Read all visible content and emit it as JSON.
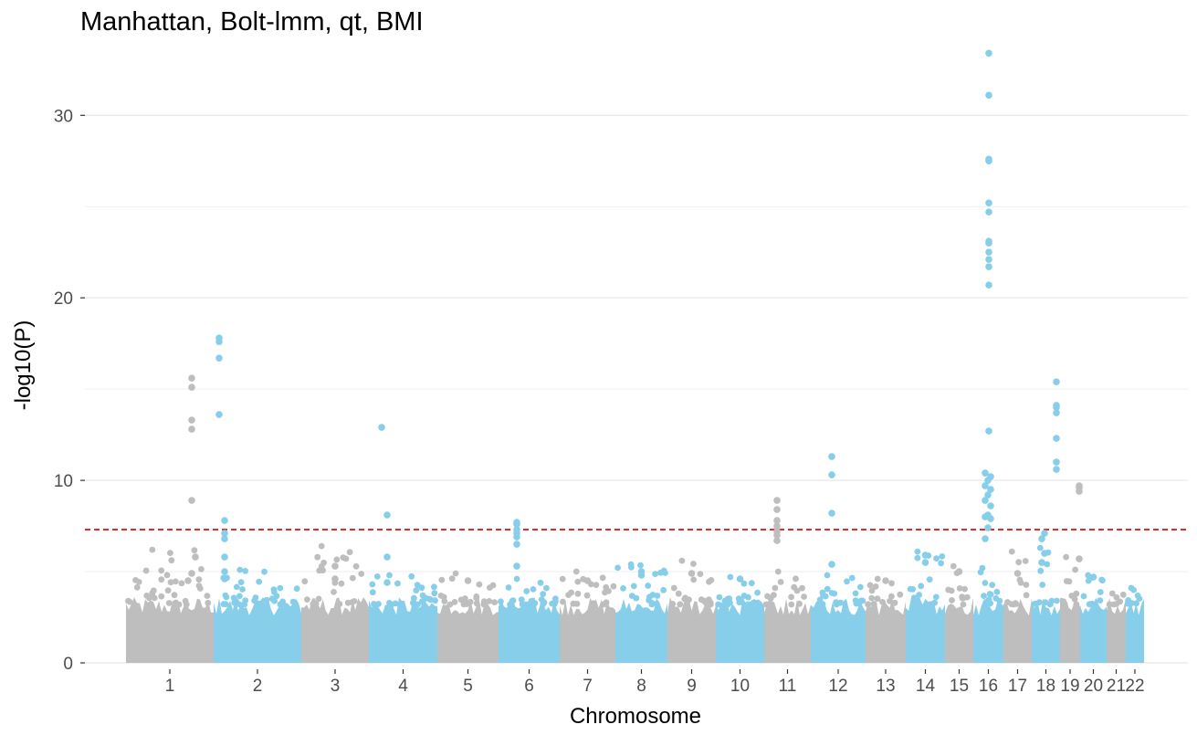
{
  "chart_data": {
    "type": "scatter",
    "title": "Manhattan, Bolt-lmm, qt, BMI",
    "xlabel": "Chromosome",
    "ylabel": "-log10(P)",
    "ylim": [
      0,
      33.5
    ],
    "y_ticks": [
      0,
      10,
      20,
      30
    ],
    "grid": true,
    "significance_line": 7.3,
    "colors": {
      "odd": "#bebebe",
      "even": "#87ceeb",
      "threshold": "#e41a1c",
      "grid": "#ebebeb"
    },
    "chromosomes": [
      {
        "label": "1",
        "background_max": 6.2,
        "points": [
          4.5,
          4.9,
          5.8,
          8.9,
          12.8,
          13.3,
          15.1,
          15.6
        ]
      },
      {
        "label": "2",
        "background_max": 5.1,
        "points": [
          4.6,
          5.0,
          5.8,
          6.8,
          7.1,
          7.8,
          13.6,
          16.7,
          17.6,
          17.8
        ]
      },
      {
        "label": "3",
        "background_max": 6.4,
        "points": [
          4.6,
          5.3
        ]
      },
      {
        "label": "4",
        "background_max": 4.8,
        "points": [
          4.4,
          5.8,
          8.1,
          12.9
        ]
      },
      {
        "label": "5",
        "background_max": 4.9,
        "points": [
          4.5
        ]
      },
      {
        "label": "6",
        "background_max": 4.6,
        "points": [
          5.3,
          6.5,
          6.9,
          7.1,
          7.3,
          7.6,
          7.7
        ]
      },
      {
        "label": "7",
        "background_max": 5.0,
        "points": [
          4.5
        ]
      },
      {
        "label": "8",
        "background_max": 5.4,
        "points": [
          4.8,
          5.0
        ]
      },
      {
        "label": "9",
        "background_max": 5.6,
        "points": [
          4.9
        ]
      },
      {
        "label": "10",
        "background_max": 4.7,
        "points": [
          4.6
        ]
      },
      {
        "label": "11",
        "background_max": 5.0,
        "points": [
          6.7,
          7.0,
          7.2,
          7.5,
          7.8,
          8.4,
          8.9
        ]
      },
      {
        "label": "12",
        "background_max": 4.8,
        "points": [
          5.4,
          8.2,
          10.3,
          11.3
        ]
      },
      {
        "label": "13",
        "background_max": 4.6,
        "points": [
          4.5
        ]
      },
      {
        "label": "14",
        "background_max": 6.1,
        "points": [
          5.5,
          5.9
        ]
      },
      {
        "label": "15",
        "background_max": 5.3,
        "points": [
          5.0
        ]
      },
      {
        "label": "16",
        "background_max": 5.2,
        "points": [
          6.8,
          7.4,
          7.9,
          8.0,
          8.1,
          8.6,
          8.9,
          9.2,
          9.5,
          9.7,
          10.0,
          10.2,
          10.4,
          12.7,
          20.7,
          21.7,
          22.1,
          22.5,
          23.0,
          23.1,
          24.7,
          25.2,
          27.5,
          27.6,
          31.1,
          33.4
        ]
      },
      {
        "label": "17",
        "background_max": 6.1,
        "points": [
          4.9
        ]
      },
      {
        "label": "18",
        "background_max": 6.3,
        "points": [
          5.5,
          6.0,
          6.8,
          7.1,
          10.6,
          11.0,
          12.3,
          13.7,
          14.0,
          14.1,
          15.4
        ]
      },
      {
        "label": "19",
        "background_max": 5.8,
        "points": [
          5.7,
          9.4,
          9.6,
          9.7
        ]
      },
      {
        "label": "20",
        "background_max": 4.8,
        "points": [
          4.7
        ]
      },
      {
        "label": "21",
        "background_max": 3.8,
        "points": []
      },
      {
        "label": "22",
        "background_max": 4.1,
        "points": []
      }
    ]
  }
}
